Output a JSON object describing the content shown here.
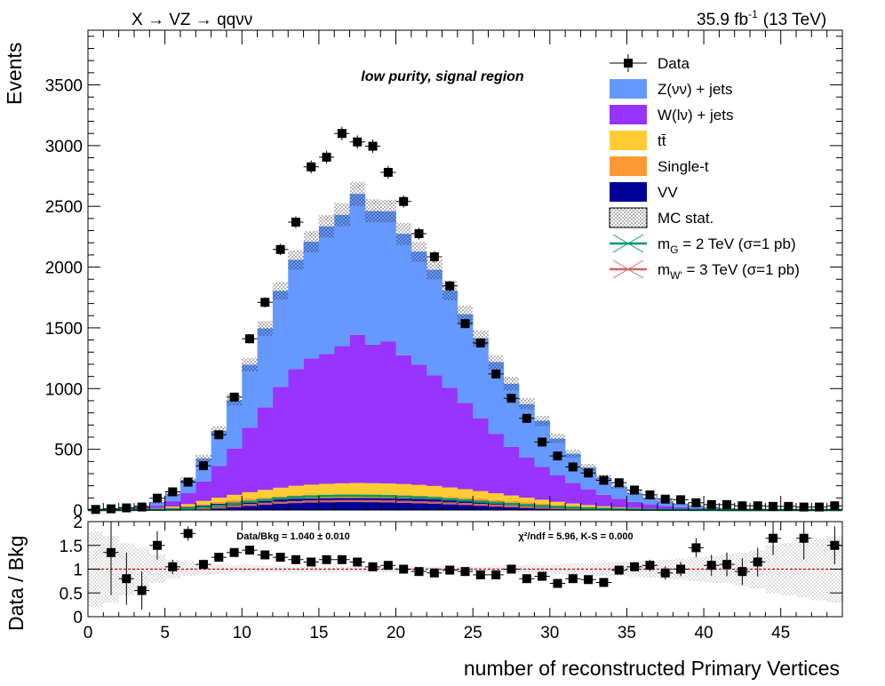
{
  "header": {
    "process": "X → VZ → qqνν",
    "lumi": "35.9 fb",
    "lumi_sup": "-1",
    "energy": "(13 TeV)"
  },
  "region_label": "low purity, signal region",
  "legend": [
    {
      "key": "data",
      "label": "Data",
      "kind": "marker",
      "color": "#000000"
    },
    {
      "key": "znn",
      "label": "Z(νν) + jets",
      "kind": "fill",
      "color": "#6699ff"
    },
    {
      "key": "wln",
      "label": "W(lν) + jets",
      "kind": "fill",
      "color": "#9933ff"
    },
    {
      "key": "tt",
      "label": "tt̄",
      "kind": "fill",
      "color": "#ffcc33"
    },
    {
      "key": "st",
      "label": "Single-t",
      "kind": "fill",
      "color": "#ff9933"
    },
    {
      "key": "vv",
      "label": "VV",
      "kind": "fill",
      "color": "#000099"
    },
    {
      "key": "mcstat",
      "label": "MC stat.",
      "kind": "hatch",
      "color": "#000000"
    },
    {
      "key": "sigG",
      "label_main": "m",
      "label_sub": "G",
      "label_rest": " = 2 TeV (σ=1 pb)",
      "kind": "line",
      "color": "#009966"
    },
    {
      "key": "sigW",
      "label_main": "m",
      "label_sub": "W'",
      "label_rest": " = 3 TeV (σ=1 pb)",
      "kind": "line",
      "color": "#cc6666"
    }
  ],
  "ratio_panel": {
    "ylabel": "Data / Bkg",
    "summary": "Data/Bkg = 1.040 ± 0.010",
    "chi2": "χ²/ndf = 5.96,   K-S = 0.000"
  },
  "chart_data": {
    "type": "bar",
    "xlabel": "number of reconstructed Primary Vertices",
    "ylabel": "Events",
    "xlim": [
      0,
      49
    ],
    "ylim": [
      0,
      3950
    ],
    "x_ticks": [
      0,
      5,
      10,
      15,
      20,
      25,
      30,
      35,
      40,
      45
    ],
    "y_ticks": [
      0,
      500,
      1000,
      1500,
      2000,
      2500,
      3000,
      3500
    ],
    "ratio_ylim": [
      0,
      2
    ],
    "ratio_ticks": [
      "0",
      "0.5",
      "1",
      "1.5",
      "2"
    ],
    "bin_width": 1,
    "bins_low_edge": [
      0,
      1,
      2,
      3,
      4,
      5,
      6,
      7,
      8,
      9,
      10,
      11,
      12,
      13,
      14,
      15,
      16,
      17,
      18,
      19,
      20,
      21,
      22,
      23,
      24,
      25,
      26,
      27,
      28,
      29,
      30,
      31,
      32,
      33,
      34,
      35,
      36,
      37,
      38,
      39,
      40,
      41,
      42,
      43,
      44,
      45,
      46,
      47,
      48
    ],
    "stack": [
      {
        "name": "VV",
        "values": [
          1,
          2,
          3,
          5,
          8,
          14,
          25,
          38,
          52,
          62,
          72,
          80,
          88,
          94,
          97,
          98,
          100,
          100,
          99,
          98,
          96,
          93,
          89,
          84,
          78,
          72,
          64,
          56,
          48,
          40,
          32,
          26,
          20,
          15,
          11,
          8,
          6,
          4,
          3,
          2,
          2,
          1,
          1,
          1,
          1,
          0,
          0,
          0,
          0
        ]
      },
      {
        "name": "Single-t",
        "values": [
          0,
          1,
          1,
          2,
          3,
          5,
          8,
          12,
          15,
          18,
          20,
          22,
          24,
          26,
          27,
          28,
          28,
          29,
          28,
          28,
          27,
          26,
          25,
          24,
          22,
          20,
          18,
          16,
          14,
          12,
          10,
          8,
          6,
          5,
          4,
          3,
          2,
          2,
          1,
          1,
          1,
          0,
          0,
          0,
          0,
          0,
          0,
          0,
          0
        ]
      },
      {
        "name": "tt̄",
        "values": [
          0,
          1,
          2,
          3,
          5,
          10,
          16,
          25,
          35,
          45,
          55,
          64,
          72,
          80,
          85,
          90,
          92,
          94,
          94,
          93,
          91,
          88,
          84,
          78,
          72,
          64,
          56,
          48,
          40,
          33,
          26,
          20,
          15,
          11,
          8,
          6,
          4,
          3,
          2,
          1,
          1,
          1,
          0,
          0,
          0,
          0,
          0,
          0,
          0
        ]
      },
      {
        "name": "W(lν) + jets",
        "values": [
          0,
          2,
          5,
          10,
          20,
          45,
          90,
          160,
          260,
          380,
          530,
          680,
          830,
          960,
          1040,
          1070,
          1130,
          1220,
          1140,
          1170,
          1060,
          990,
          910,
          820,
          710,
          600,
          490,
          400,
          330,
          270,
          220,
          170,
          130,
          95,
          70,
          50,
          35,
          25,
          18,
          12,
          8,
          6,
          4,
          3,
          2,
          2,
          1,
          1,
          1
        ]
      },
      {
        "name": "Z(νν) + jets",
        "values": [
          3,
          6,
          10,
          15,
          30,
          60,
          110,
          190,
          290,
          400,
          520,
          650,
          790,
          900,
          960,
          1050,
          1080,
          1160,
          1100,
          1070,
          1000,
          930,
          870,
          800,
          730,
          660,
          590,
          520,
          440,
          380,
          300,
          240,
          180,
          140,
          100,
          75,
          55,
          40,
          28,
          18,
          12,
          8,
          6,
          4,
          3,
          2,
          2,
          1,
          1
        ]
      }
    ],
    "mc_total": [
      4,
      12,
      21,
      35,
      66,
      134,
      249,
      425,
      652,
      905,
      1197,
      1496,
      1804,
      2060,
      2209,
      2336,
      2430,
      2603,
      2461,
      2459,
      2274,
      2127,
      1979,
      1806,
      1612,
      1416,
      1218,
      1040,
      876,
      735,
      588,
      464,
      351,
      266,
      193,
      142,
      102,
      74,
      52,
      34,
      24,
      16,
      11,
      8,
      6,
      4,
      3,
      2,
      2
    ],
    "mc_stat_unc": [
      6,
      8,
      10,
      12,
      14,
      18,
      22,
      30,
      38,
      46,
      55,
      62,
      72,
      80,
      88,
      92,
      95,
      98,
      95,
      94,
      90,
      86,
      82,
      77,
      72,
      66,
      60,
      54,
      48,
      43,
      38,
      33,
      28,
      24,
      20,
      17,
      14,
      12,
      10,
      8,
      7,
      6,
      5,
      4,
      4,
      3,
      3,
      3,
      3
    ],
    "data": [
      5,
      10,
      18,
      25,
      98,
      150,
      230,
      365,
      620,
      930,
      1410,
      1710,
      2145,
      2370,
      2825,
      2905,
      3100,
      3030,
      2995,
      2780,
      2540,
      2275,
      2085,
      1845,
      1535,
      1375,
      1120,
      920,
      755,
      560,
      445,
      355,
      305,
      245,
      225,
      165,
      125,
      90,
      85,
      60,
      45,
      45,
      35,
      35,
      30,
      30,
      25,
      25,
      35
    ],
    "signal_G": [
      0,
      0,
      1,
      2,
      3,
      6,
      12,
      22,
      36,
      52,
      68,
      82,
      96,
      106,
      112,
      116,
      118,
      118,
      117,
      114,
      110,
      104,
      97,
      88,
      79,
      69,
      59,
      49,
      40,
      32,
      25,
      19,
      14,
      10,
      7,
      5,
      3,
      2,
      2,
      1,
      1,
      0,
      0,
      0,
      0,
      0,
      0,
      0,
      0
    ],
    "signal_W": [
      0,
      0,
      0,
      1,
      2,
      4,
      8,
      14,
      22,
      32,
      42,
      52,
      60,
      66,
      70,
      72,
      74,
      74,
      73,
      71,
      68,
      64,
      60,
      55,
      49,
      43,
      37,
      31,
      25,
      20,
      16,
      12,
      9,
      7,
      5,
      3,
      2,
      2,
      1,
      1,
      1,
      0,
      0,
      0,
      0,
      0,
      0,
      0,
      0
    ],
    "ratio": [
      null,
      1.35,
      0.8,
      0.55,
      1.5,
      1.05,
      1.75,
      1.1,
      1.25,
      1.35,
      1.4,
      1.3,
      1.25,
      1.2,
      1.15,
      1.2,
      1.2,
      1.15,
      1.05,
      1.08,
      1.0,
      0.95,
      0.92,
      0.98,
      0.95,
      0.88,
      0.88,
      1.0,
      0.8,
      0.85,
      0.7,
      0.8,
      0.78,
      0.72,
      0.98,
      1.05,
      1.08,
      0.92,
      1.0,
      1.45,
      1.08,
      1.1,
      0.95,
      1.15,
      1.65,
      null,
      1.65,
      null,
      1.5
    ],
    "ratio_err": [
      0,
      0.9,
      0.55,
      0.4,
      0.3,
      0.15,
      0.15,
      0.1,
      0.06,
      0.05,
      0.04,
      0.04,
      0.03,
      0.03,
      0.03,
      0.03,
      0.03,
      0.03,
      0.03,
      0.03,
      0.03,
      0.03,
      0.03,
      0.03,
      0.03,
      0.03,
      0.04,
      0.04,
      0.04,
      0.05,
      0.05,
      0.06,
      0.07,
      0.08,
      0.09,
      0.1,
      0.12,
      0.14,
      0.15,
      0.2,
      0.22,
      0.25,
      0.28,
      0.3,
      0.35,
      0,
      0.45,
      0,
      0.4
    ],
    "ratio_band": [
      0.8,
      0.7,
      0.55,
      0.45,
      0.3,
      0.2,
      0.15,
      0.12,
      0.1,
      0.08,
      0.08,
      0.07,
      0.07,
      0.06,
      0.06,
      0.06,
      0.06,
      0.06,
      0.06,
      0.06,
      0.06,
      0.06,
      0.06,
      0.06,
      0.06,
      0.06,
      0.07,
      0.08,
      0.08,
      0.09,
      0.1,
      0.12,
      0.13,
      0.14,
      0.15,
      0.16,
      0.18,
      0.2,
      0.22,
      0.25,
      0.28,
      0.3,
      0.35,
      0.4,
      0.5,
      0.55,
      0.6,
      0.65,
      0.7
    ]
  }
}
